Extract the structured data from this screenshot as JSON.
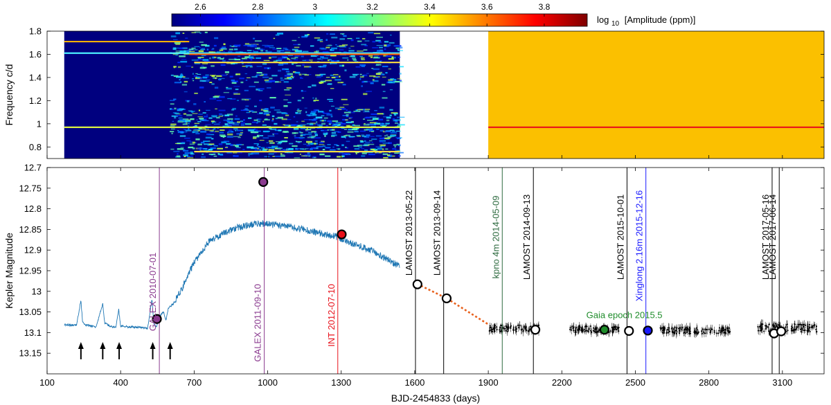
{
  "colorbar": {
    "label": "log 10 [Amplitude (ppm)]",
    "label_main": "log",
    "label_sub": "10",
    "label_rest": "[Amplitude (ppm)]",
    "min": 2.5,
    "max": 3.95,
    "ticks": [
      2.6,
      2.8,
      3,
      3.2,
      3.4,
      3.6,
      3.8
    ],
    "tick_labels": [
      "2.6",
      "2.8",
      "3",
      "3.2",
      "3.4",
      "3.6",
      "3.8"
    ]
  },
  "chart_data": [
    {
      "type": "heatmap",
      "ylabel": "Frequency c/d",
      "ylim": [
        0.7,
        1.8
      ],
      "xlim": [
        100,
        3270
      ],
      "yticks": [
        0.8,
        1,
        1.2,
        1.4,
        1.6,
        1.8
      ],
      "ytick_labels": [
        "0.8",
        "1",
        "1.2",
        "1.4",
        "1.6",
        "1.8"
      ],
      "background_color": "#00007f",
      "segments": [
        {
          "x_range": [
            170,
            1539
          ],
          "color": "#00007f"
        },
        {
          "x_range": [
            1900,
            3270
          ],
          "color": "#fbc000"
        }
      ],
      "bands": [
        {
          "freq": 0.97,
          "x_range": [
            170,
            1539
          ],
          "color": "#e8ff40"
        },
        {
          "freq": 1.61,
          "x_range": [
            170,
            1539
          ],
          "color": "#4cf0ff"
        },
        {
          "freq": 1.71,
          "x_range": [
            170,
            680
          ],
          "color": "#ffb000"
        },
        {
          "freq": 1.6,
          "x_range": [
            680,
            1539
          ],
          "color": "#ff5a00"
        },
        {
          "freq": 1.53,
          "x_range": [
            700,
            1539
          ],
          "color": "#ffe040"
        },
        {
          "freq": 0.76,
          "x_range": [
            700,
            1539
          ],
          "color": "#ffe040"
        },
        {
          "freq": 0.97,
          "x_range": [
            1900,
            3270
          ],
          "color": "#e8101a"
        }
      ]
    },
    {
      "type": "line",
      "xlabel": "BJD-2454833 (days)",
      "ylabel": "Kepler Magnitude",
      "xlim": [
        100,
        3270
      ],
      "ylim": [
        13.2,
        12.7
      ],
      "inverted_y": true,
      "xticks": [
        100,
        400,
        700,
        1000,
        1300,
        1600,
        1900,
        2200,
        2500,
        2800,
        3100
      ],
      "xtick_labels": [
        "100",
        "400",
        "700",
        "1000",
        "1300",
        "1600",
        "1900",
        "2200",
        "2500",
        "2800",
        "3100"
      ],
      "yticks": [
        12.7,
        12.75,
        12.8,
        12.85,
        12.9,
        12.95,
        13,
        13.05,
        13.1,
        13.15
      ],
      "ytick_labels": [
        "12.7",
        "12.75",
        "12.8",
        "12.85",
        "12.9",
        "12.95",
        "13",
        "13.05",
        "13.1",
        "13.15"
      ],
      "kepler_lightcurve": {
        "color": "#1f77b4",
        "x": [
          170,
          220,
          238,
          245,
          260,
          300,
          327,
          335,
          360,
          380,
          392,
          400,
          430,
          480,
          510,
          528,
          535,
          545,
          560,
          575,
          585,
          595,
          615,
          645,
          700,
          760,
          820,
          880,
          940,
          990,
          1040,
          1100,
          1160,
          1220,
          1280,
          1350,
          1420,
          1480,
          1539
        ],
        "y": [
          13.081,
          13.082,
          13.022,
          13.075,
          13.082,
          13.086,
          13.03,
          13.077,
          13.085,
          13.088,
          13.044,
          13.084,
          13.086,
          13.087,
          13.09,
          13.018,
          13.077,
          13.087,
          13.06,
          13.05,
          13.07,
          13.04,
          13.03,
          13.0,
          12.93,
          12.88,
          12.86,
          12.845,
          12.838,
          12.835,
          12.84,
          12.845,
          12.852,
          12.86,
          12.868,
          12.885,
          12.9,
          12.92,
          12.94
        ],
        "noise": 0.006
      },
      "groundbased_points": {
        "color": "#000000",
        "clusters": [
          {
            "x": [
              1900,
              2110
            ],
            "y": 13.09,
            "spread": 0.008
          },
          {
            "x": [
              2230,
              2440
            ],
            "y": 13.092,
            "spread": 0.008
          },
          {
            "x": [
              2600,
              2890
            ],
            "y": 13.095,
            "spread": 0.008
          },
          {
            "x": [
              3000,
              3240
            ],
            "y": 13.088,
            "spread": 0.01
          }
        ]
      },
      "extrapolation": {
        "color": "#e8601c",
        "x": [
          1610,
          1730,
          1900
        ],
        "y": [
          12.982,
          13.017,
          13.08
        ]
      },
      "vlines": [
        {
          "x": 558,
          "color": "#8a3a8f",
          "label": "GALEX 2010-07-01",
          "label_y": 12.906
        },
        {
          "x": 986,
          "color": "#8a3a8f",
          "label": "GALEX 2011-09-10",
          "label_y": 12.982
        },
        {
          "x": 1286,
          "color": "#e8101a",
          "label": "INT 2012-07-10",
          "label_y": 12.982
        },
        {
          "x": 1603,
          "color": "#000000",
          "label": "LAMOST 2013-05-22",
          "label_y": 12.755
        },
        {
          "x": 1718,
          "color": "#000000",
          "label": "LAMOST 2013-09-14",
          "label_y": 12.755
        },
        {
          "x": 1957,
          "color": "#2d6a3f",
          "label": "kpno 4m 2014-05-09",
          "label_y": 12.768
        },
        {
          "x": 2084,
          "color": "#000000",
          "label": "LAMOST 2014-09-13",
          "label_y": 12.765
        },
        {
          "x": 2466,
          "color": "#000000",
          "label": "LAMOST 2015-10-01",
          "label_y": 12.765
        },
        {
          "x": 2543,
          "color": "#1a1aff",
          "label": "Xinglong 2.16m 2015-12-16",
          "label_y": 12.755
        },
        {
          "x": 3058,
          "color": "#000000",
          "label": "LAMOST 2017-05-16",
          "label_y": 12.765
        },
        {
          "x": 3087,
          "color": "#000000",
          "label": "LAMOST 2017-06-14",
          "label_y": 12.765
        }
      ],
      "markers": [
        {
          "x": 548,
          "y": 13.067,
          "fill": "#8a3a8f",
          "event": "GALEX 2010-07-01"
        },
        {
          "x": 982,
          "y": 12.735,
          "fill": "#8a3a8f",
          "event": "GALEX 2011-09-10"
        },
        {
          "x": 1302,
          "y": 12.862,
          "fill": "#e8101a",
          "event": "INT 2012-07-10"
        },
        {
          "x": 1611,
          "y": 12.983,
          "fill": "#ffffff",
          "event": "LAMOST 2013-05-22"
        },
        {
          "x": 1730,
          "y": 13.017,
          "fill": "#ffffff",
          "event": "LAMOST 2013-09-14"
        },
        {
          "x": 2092,
          "y": 13.093,
          "fill": "#ffffff",
          "event": "LAMOST 2014-09-13"
        },
        {
          "x": 2374,
          "y": 13.093,
          "fill": "#1e8c2a",
          "event": "Gaia epoch 2015.5"
        },
        {
          "x": 2474,
          "y": 13.096,
          "fill": "#ffffff",
          "event": "LAMOST 2015-10-01"
        },
        {
          "x": 2551,
          "y": 13.095,
          "fill": "#1a1aff",
          "event": "Xinglong 2.16m 2015-12-16"
        },
        {
          "x": 3066,
          "y": 13.102,
          "fill": "#ffffff",
          "event": "LAMOST 2017-05-16"
        },
        {
          "x": 3095,
          "y": 13.097,
          "fill": "#ffffff",
          "event": "LAMOST 2017-06-14"
        }
      ],
      "annotations": [
        {
          "text": "Gaia epoch 2015.5",
          "x": 2300,
          "y": 13.065,
          "color": "#1e8c2a"
        }
      ],
      "arrows": [
        {
          "x": 238
        },
        {
          "x": 327
        },
        {
          "x": 394
        },
        {
          "x": 531
        },
        {
          "x": 602
        }
      ]
    }
  ]
}
